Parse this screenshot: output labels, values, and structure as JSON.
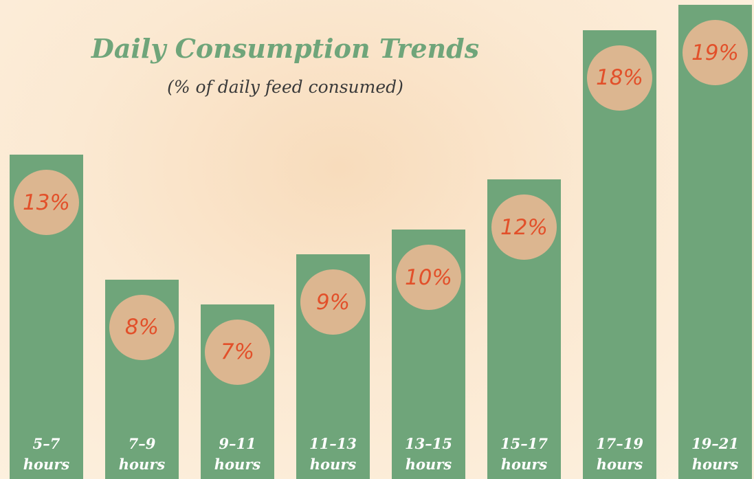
{
  "chart_data": {
    "type": "bar",
    "title": "Daily Consumption Trends",
    "subtitle": "(% of daily feed consumed)",
    "categories": [
      "5–7 hours",
      "7–9 hours",
      "9–11 hours",
      "11–13 hours",
      "13–15 hours",
      "15–17 hours",
      "17–19 hours",
      "19–21 hours"
    ],
    "values": [
      13,
      8,
      7,
      9,
      10,
      12,
      18,
      19
    ],
    "value_labels": [
      "13%",
      "8%",
      "7%",
      "9%",
      "10%",
      "12%",
      "18%",
      "19%"
    ],
    "color": "#6fa57a"
  }
}
